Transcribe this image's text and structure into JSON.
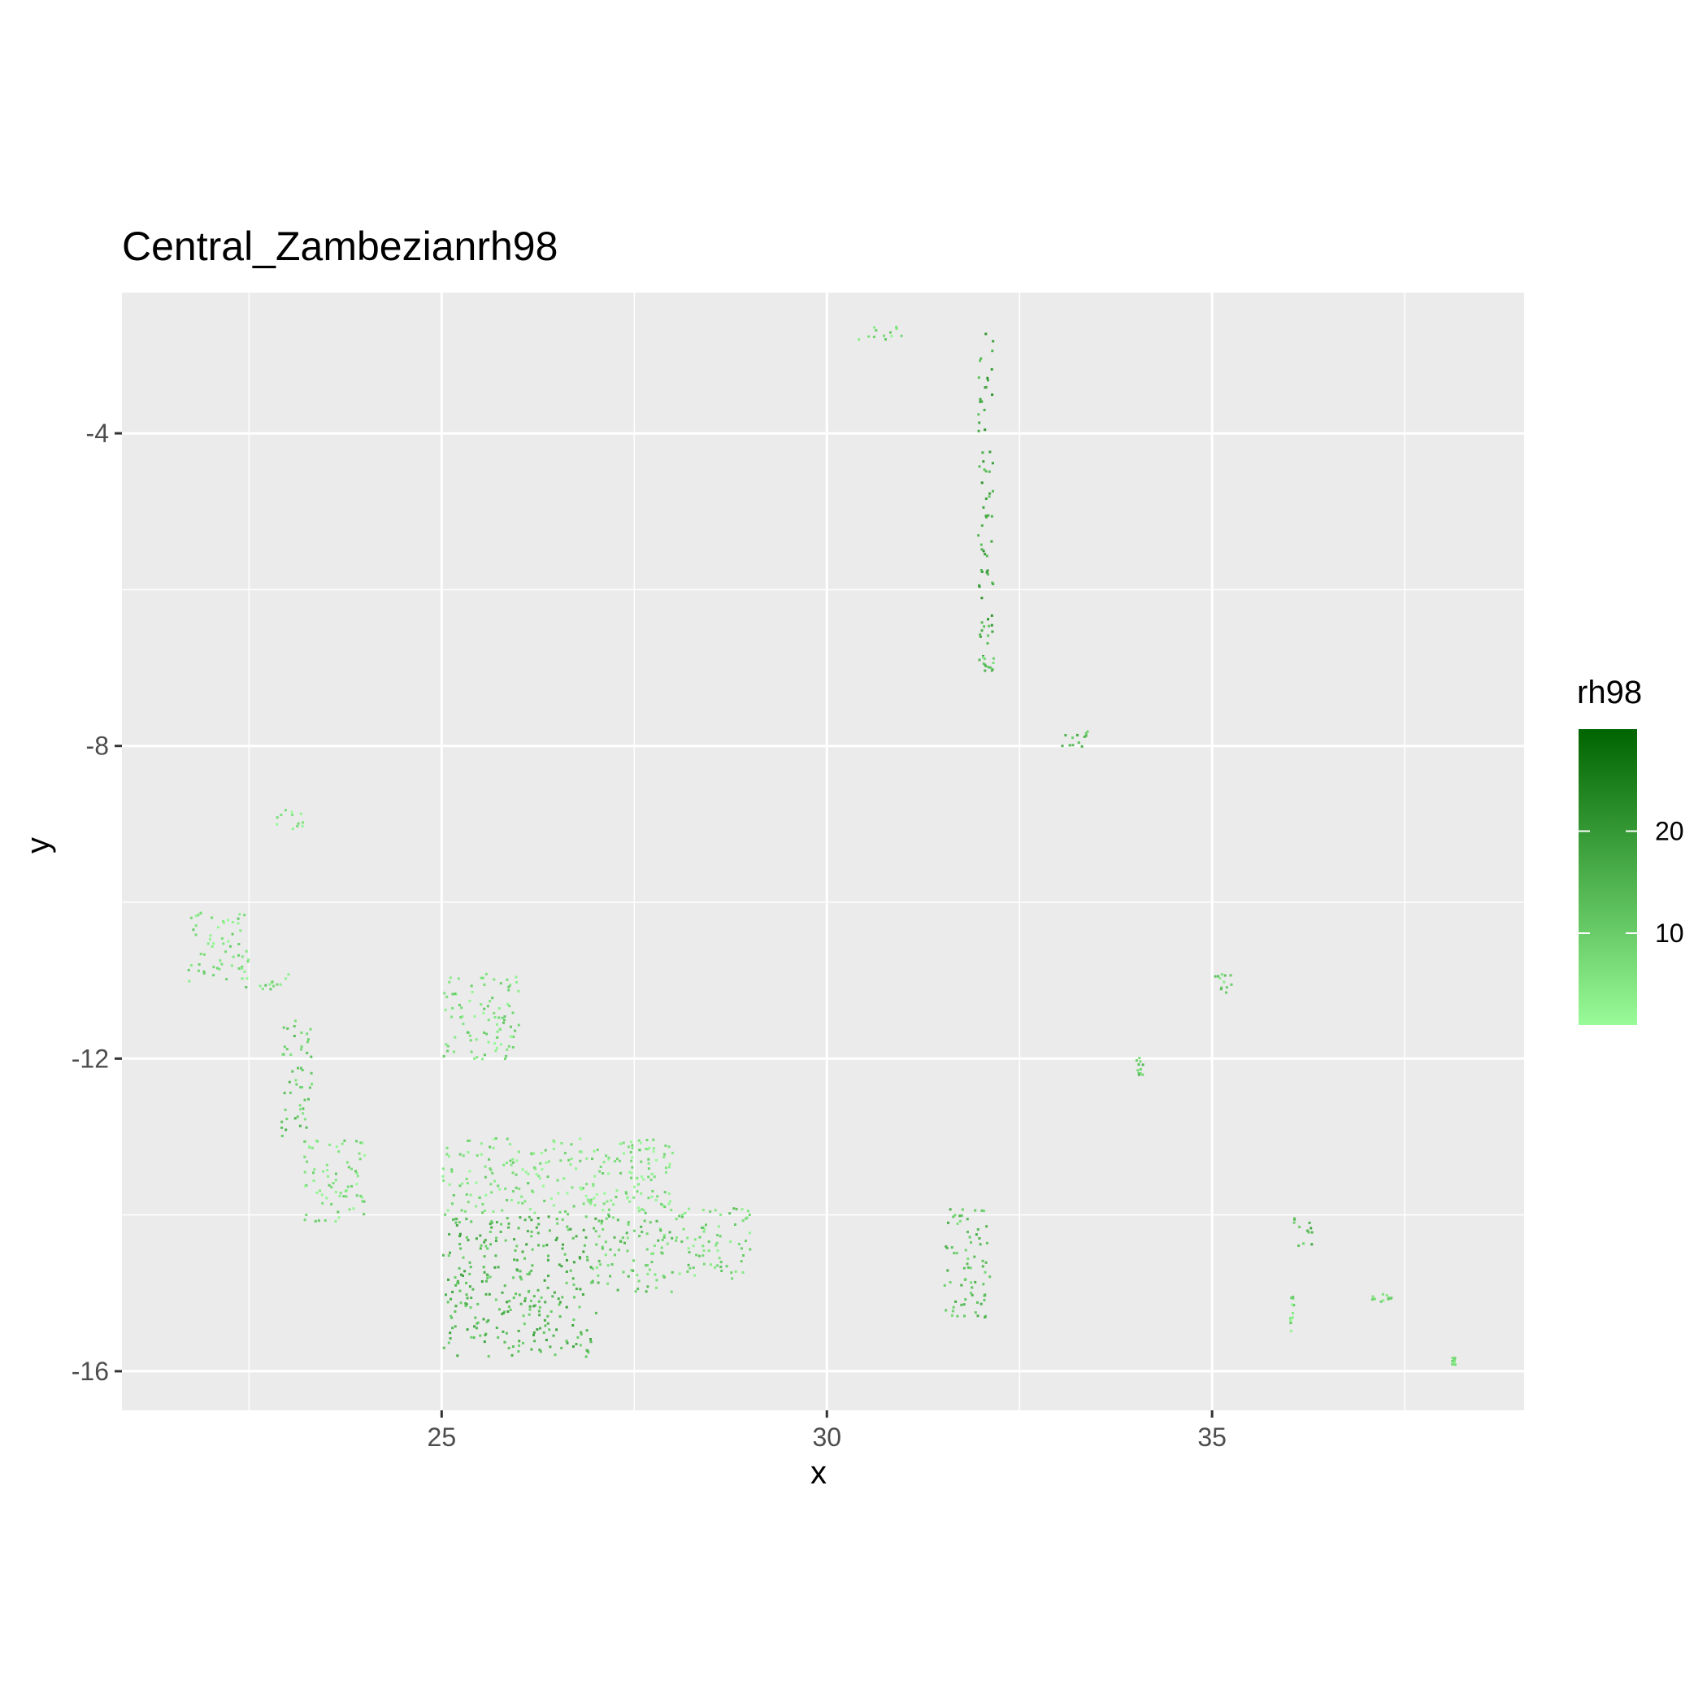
{
  "chart_data": {
    "type": "heatmap",
    "title": "Central_Zambezianrh98",
    "xlabel": "x",
    "ylabel": "y",
    "xlim": [
      20.85,
      39.05
    ],
    "ylim": [
      -16.5,
      -2.2
    ],
    "x_ticks": [
      25,
      30,
      35
    ],
    "x_tick_labels": [
      "25",
      "30",
      "35"
    ],
    "y_ticks": [
      -4,
      -8,
      -12,
      -16
    ],
    "y_tick_labels": [
      "-4",
      "-8",
      "-12",
      "-16"
    ],
    "grid": true,
    "panel_background": "#ebebeb",
    "legend": {
      "title": "rh98",
      "placement": "right",
      "range": [
        1,
        30
      ],
      "breaks": [
        20,
        10
      ],
      "break_labels": [
        "20",
        "10"
      ],
      "low_color": "#98fb98",
      "high_color": "#006400"
    },
    "regions": [
      {
        "x": [
          30.4,
          31.0
        ],
        "y": [
          -2.6,
          -2.8
        ],
        "rh98": 6
      },
      {
        "x": [
          31.95,
          32.15
        ],
        "y": [
          -2.7,
          -6.9
        ],
        "rh98": 16
      },
      {
        "x": [
          31.95,
          32.15
        ],
        "y": [
          -6.85,
          -7.05
        ],
        "rh98": 10
      },
      {
        "x": [
          33.0,
          33.4
        ],
        "y": [
          -7.8,
          -8.0
        ],
        "rh98": 12
      },
      {
        "x": [
          22.8,
          23.2
        ],
        "y": [
          -8.8,
          -9.1
        ],
        "rh98": 5
      },
      {
        "x": [
          21.7,
          22.5
        ],
        "y": [
          -10.1,
          -11.0
        ],
        "rh98": 6
      },
      {
        "x": [
          22.2,
          23.0
        ],
        "y": [
          -10.9,
          -11.1
        ],
        "rh98": 7
      },
      {
        "x": [
          22.9,
          23.3
        ],
        "y": [
          -11.5,
          -13.0
        ],
        "rh98": 10
      },
      {
        "x": [
          23.2,
          24.0
        ],
        "y": [
          -13.0,
          -14.1
        ],
        "rh98": 6
      },
      {
        "x": [
          25.0,
          26.0
        ],
        "y": [
          -10.9,
          -12.0
        ],
        "rh98": 6
      },
      {
        "x": [
          25.0,
          28.0
        ],
        "y": [
          -13.0,
          -14.0
        ],
        "rh98": 5
      },
      {
        "x": [
          25.0,
          27.0
        ],
        "y": [
          -14.0,
          -15.8
        ],
        "rh98": 13
      },
      {
        "x": [
          27.0,
          28.0
        ],
        "y": [
          -14.0,
          -15.0
        ],
        "rh98": 9
      },
      {
        "x": [
          28.0,
          29.0
        ],
        "y": [
          -13.9,
          -14.8
        ],
        "rh98": 7
      },
      {
        "x": [
          31.5,
          32.1
        ],
        "y": [
          -13.9,
          -15.3
        ],
        "rh98": 11
      },
      {
        "x": [
          35.0,
          35.25
        ],
        "y": [
          -10.9,
          -11.2
        ],
        "rh98": 8
      },
      {
        "x": [
          34.0,
          34.1
        ],
        "y": [
          -11.9,
          -12.2
        ],
        "rh98": 10
      },
      {
        "x": [
          36.0,
          36.3
        ],
        "y": [
          -14.0,
          -14.4
        ],
        "rh98": 12
      },
      {
        "x": [
          36.0,
          36.05
        ],
        "y": [
          -15.0,
          -15.5
        ],
        "rh98": 6
      },
      {
        "x": [
          37.0,
          37.4
        ],
        "y": [
          -15.0,
          -15.1
        ],
        "rh98": 8
      },
      {
        "x": [
          38.1,
          38.15
        ],
        "y": [
          -15.8,
          -15.9
        ],
        "rh98": 5
      }
    ]
  }
}
